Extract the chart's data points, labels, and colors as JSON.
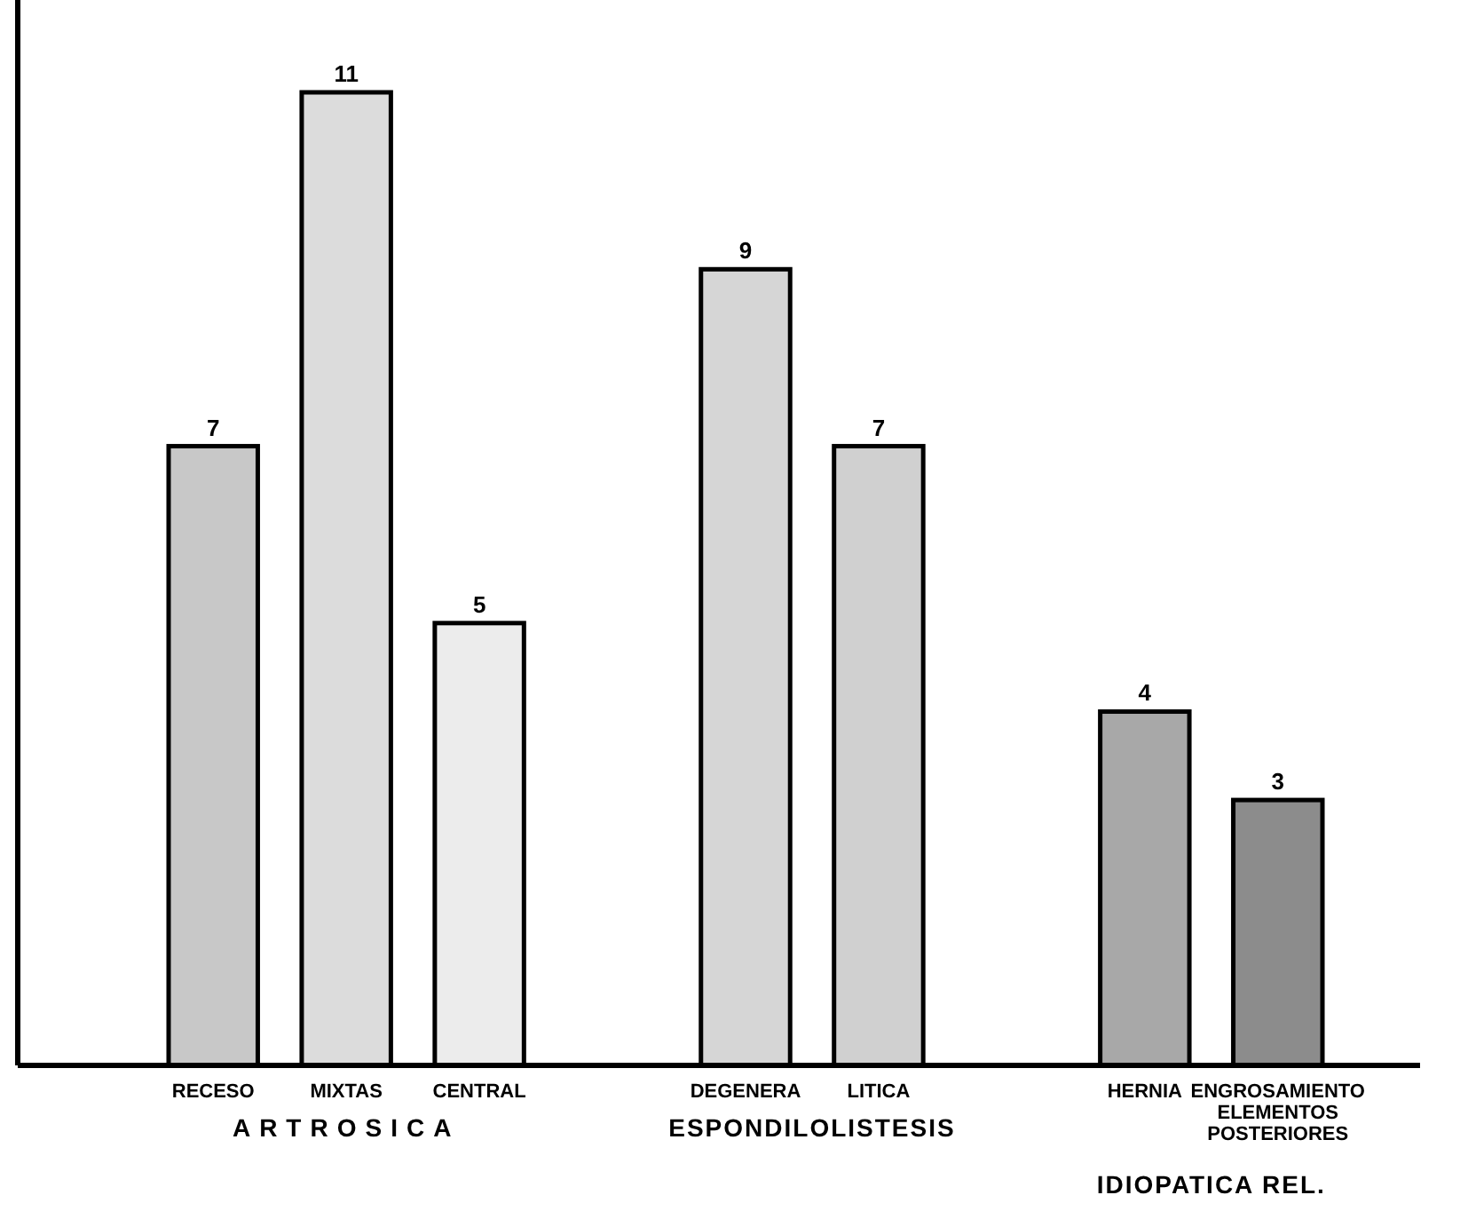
{
  "chart_data": {
    "type": "bar",
    "categories": [
      "RECESO",
      "MIXTAS",
      "CENTRAL",
      null,
      "DEGENERA",
      "LITICA",
      null,
      "HERNIA",
      "ENGROSAMIENTO ELEMENTOS POSTERIORES"
    ],
    "values": [
      7,
      11,
      5,
      null,
      9,
      7,
      null,
      4,
      3
    ],
    "colors": [
      "#c8c8c8",
      "#dcdcdc",
      "#ececec",
      null,
      "#d6d6d6",
      "#d0d0d0",
      null,
      "#a8a8a8",
      "#8c8c8c"
    ],
    "data_labels": true,
    "annotations": [
      "ARTROSICA",
      "ESPONDILOLISTESIS",
      "IDIOPATICA REL."
    ]
  }
}
